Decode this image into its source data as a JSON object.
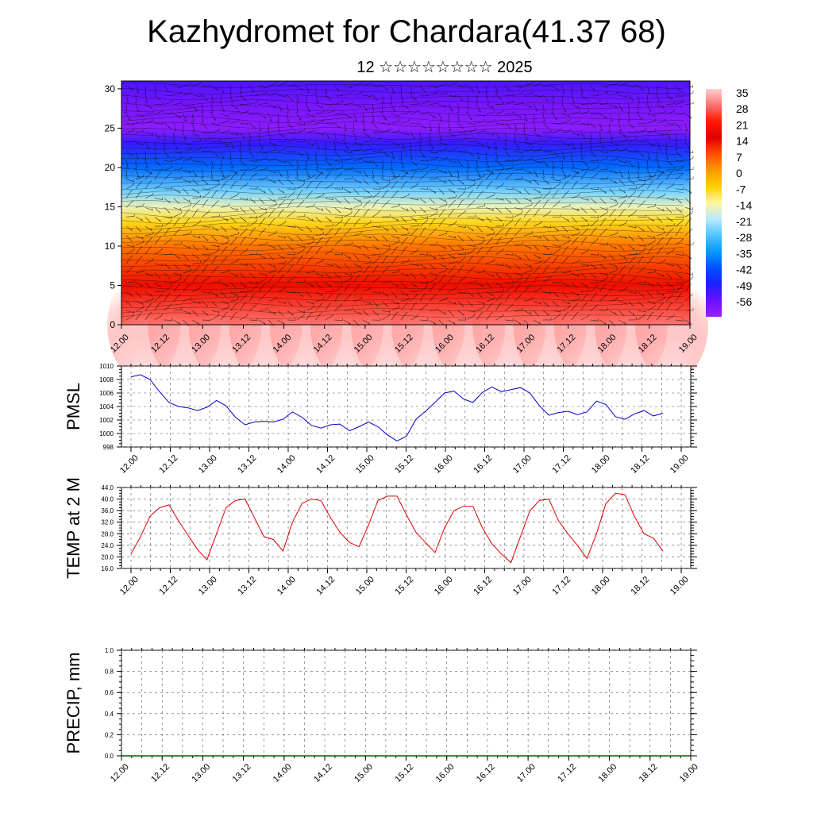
{
  "title": "Kazhydromet for Chardara(41.37 68)",
  "subtitle": "12 ☆☆☆☆☆☆☆☆ 2025",
  "chart_data": [
    {
      "type": "heatmap",
      "name": "vertical-cross-section",
      "x_ticks": [
        "12.00",
        "12.12",
        "13.00",
        "13.12",
        "14.00",
        "14.12",
        "15.00",
        "15.12",
        "16.00",
        "16.12",
        "17.00",
        "17.12",
        "18.00",
        "18.12",
        "19.00"
      ],
      "y_ticks": [
        0,
        5,
        10,
        15,
        20,
        25,
        30
      ],
      "ylim": [
        0,
        31
      ],
      "colorbar_labels": [
        "35",
        "28",
        "21",
        "14",
        "7",
        "0",
        "-7",
        "-14",
        "-21",
        "-28",
        "-35",
        "-42",
        "-49",
        "-56"
      ],
      "colorbar_colors": [
        "#ffd0d0",
        "#ff7070",
        "#ff1a00",
        "#e00000",
        "#ff5000",
        "#ff9a00",
        "#ffd000",
        "#fff7a0",
        "#b8eaff",
        "#50c4ff",
        "#009cff",
        "#0050ff",
        "#1a20ff",
        "#6a10ff",
        "#9a20ff"
      ],
      "bands": [
        {
          "height": 0,
          "temperature": 30
        },
        {
          "height": 5,
          "temperature": 22
        },
        {
          "height": 10,
          "temperature": 8
        },
        {
          "height": 13,
          "temperature": -4
        },
        {
          "height": 15,
          "temperature": -12
        },
        {
          "height": 17,
          "temperature": -22
        },
        {
          "height": 20,
          "temperature": -36
        },
        {
          "height": 23,
          "temperature": -48
        },
        {
          "height": 25,
          "temperature": -58
        },
        {
          "height": 28,
          "temperature": -55
        },
        {
          "height": 31,
          "temperature": -50
        }
      ]
    },
    {
      "type": "line",
      "ylabel": "PMSL",
      "ylim": [
        998,
        1010
      ],
      "y_ticks": [
        "998",
        "1000",
        "1002",
        "1004",
        "1006",
        "1008",
        "1010"
      ],
      "x_ticks": [
        "12.00",
        "12.12",
        "13.00",
        "13.12",
        "14.00",
        "14.12",
        "15.00",
        "15.12",
        "16.00",
        "16.12",
        "17.00",
        "17.12",
        "18.00",
        "18.12",
        "19.00"
      ],
      "color": "#0000cc",
      "values": [
        1008.4,
        1008.7,
        1008.0,
        1006.2,
        1004.6,
        1004.0,
        1003.8,
        1003.4,
        1003.9,
        1004.9,
        1004.1,
        1002.4,
        1001.3,
        1001.7,
        1001.8,
        1001.7,
        1002.1,
        1003.2,
        1002.4,
        1001.2,
        1000.8,
        1001.3,
        1001.4,
        1000.4,
        1001.0,
        1001.7,
        1001.0,
        999.8,
        998.9,
        999.6,
        1002.1,
        1003.3,
        1004.6,
        1006.0,
        1006.3,
        1005.1,
        1004.6,
        1006.1,
        1006.9,
        1006.2,
        1006.5,
        1006.8,
        1006.0,
        1004.1,
        1002.7,
        1003.1,
        1003.3,
        1002.8,
        1003.2,
        1004.8,
        1004.3,
        1002.5,
        1002.1,
        1002.9,
        1003.4,
        1002.6,
        1003.0
      ]
    },
    {
      "type": "line",
      "ylabel": "TEMP at 2 M",
      "ylim": [
        16,
        44
      ],
      "y_ticks": [
        "16.0",
        "20.0",
        "24.0",
        "28.0",
        "32.0",
        "36.0",
        "40.0",
        "44.0"
      ],
      "x_ticks": [
        "12.00",
        "12.12",
        "13.00",
        "13.12",
        "14.00",
        "14.12",
        "15.00",
        "15.12",
        "16.00",
        "16.12",
        "17.00",
        "17.12",
        "18.00",
        "18.12",
        "19.00"
      ],
      "color": "#dd0000",
      "values": [
        21.0,
        27.0,
        34.0,
        37.0,
        38.0,
        32.5,
        27.5,
        22.5,
        19.0,
        28.0,
        37.0,
        39.5,
        40.0,
        33.5,
        27.0,
        26.0,
        22.0,
        32.0,
        38.5,
        40.0,
        39.5,
        33.5,
        28.5,
        25.0,
        23.5,
        31.0,
        39.5,
        41.0,
        41.0,
        34.5,
        28.5,
        25.0,
        21.5,
        30.0,
        36.0,
        37.5,
        37.5,
        30.0,
        24.5,
        21.0,
        18.0,
        27.0,
        36.0,
        39.5,
        40.0,
        32.5,
        28.0,
        24.0,
        19.5,
        28.0,
        38.5,
        42.0,
        41.5,
        34.0,
        28.0,
        26.5,
        22.0
      ]
    },
    {
      "type": "line",
      "ylabel": "PRECIP, mm",
      "ylim": [
        0,
        1
      ],
      "y_ticks": [
        "0.0",
        "0.2",
        "0.4",
        "0.6",
        "0.8",
        "1.0"
      ],
      "x_ticks": [
        "12.00",
        "12.12",
        "13.00",
        "13.12",
        "14.00",
        "14.12",
        "15.00",
        "15.12",
        "16.00",
        "16.12",
        "17.00",
        "17.12",
        "18.00",
        "18.12",
        "19.00"
      ],
      "color": "#006000",
      "values": [
        0,
        0,
        0,
        0,
        0,
        0,
        0,
        0,
        0,
        0,
        0,
        0,
        0,
        0,
        0,
        0,
        0,
        0,
        0,
        0,
        0,
        0,
        0,
        0,
        0,
        0,
        0,
        0,
        0,
        0,
        0,
        0,
        0,
        0,
        0,
        0,
        0,
        0,
        0,
        0,
        0,
        0,
        0,
        0,
        0,
        0,
        0,
        0,
        0,
        0,
        0,
        0,
        0,
        0,
        0,
        0,
        0
      ]
    }
  ]
}
